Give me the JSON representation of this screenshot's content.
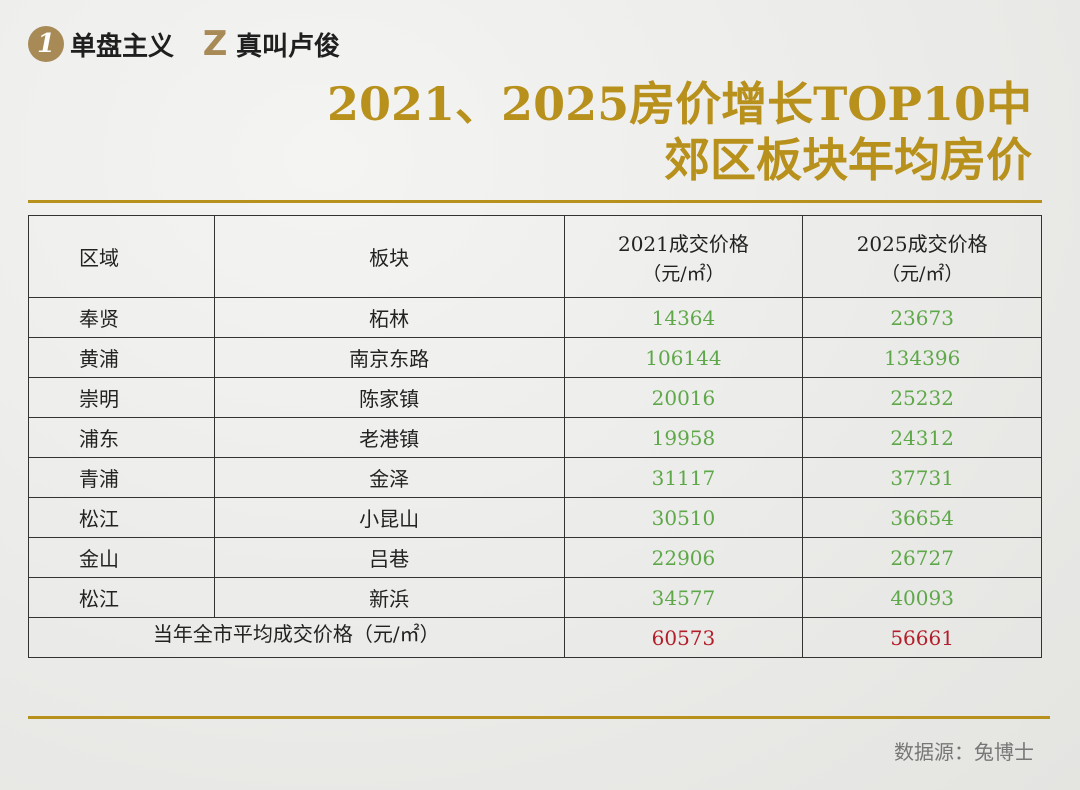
{
  "header": {
    "brand1": "单盘主义",
    "brand1_mark": "1",
    "brand2": "真叫卢俊",
    "brand2_mark": "Z"
  },
  "title": {
    "line1": "2021、2025房价增长TOP10中",
    "line2": "郊区板块年均房价"
  },
  "chart_data": {
    "type": "table",
    "columns": [
      "区域",
      "板块",
      "2021成交价格",
      "2025成交价格"
    ],
    "column_units": [
      "",
      "",
      "（元/㎡）",
      "（元/㎡）"
    ],
    "rows": [
      {
        "region": "奉贤",
        "block": "柘林",
        "price_2021": "14364",
        "price_2025": "23673"
      },
      {
        "region": "黄浦",
        "block": "南京东路",
        "price_2021": "106144",
        "price_2025": "134396"
      },
      {
        "region": "崇明",
        "block": "陈家镇",
        "price_2021": "20016",
        "price_2025": "25232"
      },
      {
        "region": "浦东",
        "block": "老港镇",
        "price_2021": "19958",
        "price_2025": "24312"
      },
      {
        "region": "青浦",
        "block": "金泽",
        "price_2021": "31117",
        "price_2025": "37731"
      },
      {
        "region": "松江",
        "block": "小昆山",
        "price_2021": "30510",
        "price_2025": "36654"
      },
      {
        "region": "金山",
        "block": "吕巷",
        "price_2021": "22906",
        "price_2025": "26727"
      },
      {
        "region": "松江",
        "block": "新浜",
        "price_2021": "34577",
        "price_2025": "40093"
      }
    ],
    "average": {
      "label": "当年全市平均成交价格（元/㎡）",
      "price_2021": "60573",
      "price_2025": "56661"
    },
    "colors": {
      "values": "#5fa84a",
      "average": "#b41e2a",
      "accent": "#b8901c"
    }
  },
  "footer": {
    "source": "数据源：兔博士"
  }
}
